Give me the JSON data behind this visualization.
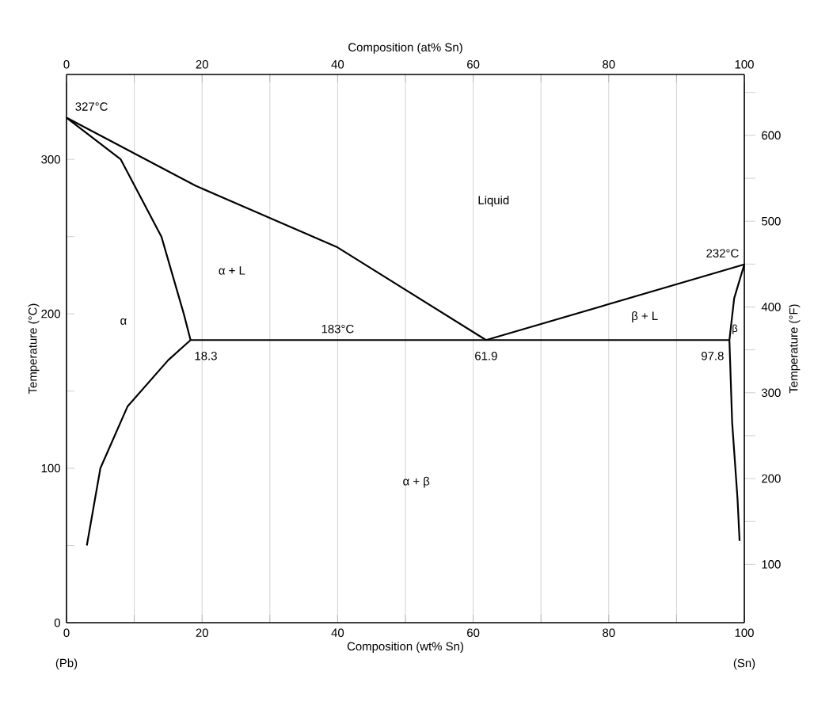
{
  "chart_data": {
    "type": "line",
    "xlabel": "Composition (wt% Sn)",
    "ylabel": "Temperature (°C)",
    "y2label": "Temperature (°F)",
    "x2label": "Composition (at% Sn)",
    "xlim": [
      0,
      100
    ],
    "ylim": [
      0,
      355
    ],
    "y2lim": [
      32,
      671
    ],
    "x2lim": [
      0,
      100
    ],
    "xticks": [
      0,
      {
        "value": 10,
        "label": null
      },
      20,
      {
        "value": 30,
        "label": null
      },
      40,
      {
        "value": 50,
        "label": null
      },
      60,
      {
        "value": 70,
        "label": null
      },
      80,
      {
        "value": 90,
        "label": null
      },
      100
    ],
    "yticks": [
      0,
      {
        "value": 50,
        "label": null
      },
      100,
      {
        "value": 150,
        "label": null
      },
      200,
      {
        "value": 250,
        "label": null
      },
      300
    ],
    "y2ticks": [
      100,
      {
        "value": 150,
        "label": null
      },
      200,
      {
        "value": 250,
        "label": null
      },
      300,
      {
        "value": 350,
        "label": null
      },
      400,
      {
        "value": 450,
        "label": null
      },
      500,
      {
        "value": 550,
        "label": null
      },
      600,
      {
        "value": 650,
        "label": null
      }
    ],
    "x2ticks": [
      0,
      {
        "value": 10,
        "label": null
      },
      20,
      {
        "value": 30,
        "label": null
      },
      40,
      {
        "value": 50,
        "label": null
      },
      60,
      {
        "value": 70,
        "label": null
      },
      80,
      {
        "value": 90,
        "label": null
      },
      100
    ],
    "grid": "x",
    "series": [
      {
        "color": "#000000",
        "x": [
          0,
          19,
          40,
          61.9
        ],
        "values": [
          327,
          283,
          243,
          183
        ]
      },
      {
        "color": "#000000",
        "x": [
          61.9,
          100
        ],
        "values": [
          183,
          232
        ]
      },
      {
        "color": "#000000",
        "x": [
          0,
          8,
          14,
          17.3,
          18.3
        ],
        "values": [
          327,
          300,
          250,
          200,
          183
        ]
      },
      {
        "color": "#000000",
        "x": [
          18.3,
          97.8
        ],
        "values": [
          183,
          183
        ]
      },
      {
        "color": "#000000",
        "x": [
          18.3,
          15,
          9,
          5,
          3
        ],
        "values": [
          183,
          170,
          140,
          100,
          50
        ]
      },
      {
        "color": "#000000",
        "x": [
          100,
          98.5,
          97.8,
          98.2,
          99,
          99.3
        ],
        "values": [
          232,
          210,
          183,
          130,
          80,
          53
        ]
      }
    ],
    "annotations": [
      {
        "text": "327°C",
        "x": 0,
        "y": 327
      },
      {
        "text": "232°C",
        "x": 100,
        "y": 232
      },
      {
        "text": "183°C",
        "x": 40,
        "y": 183
      },
      {
        "text": "18.3",
        "x": 18.3,
        "y": 183
      },
      {
        "text": "61.9",
        "x": 61.9,
        "y": 183
      },
      {
        "text": "97.8",
        "x": 97.8,
        "y": 183
      },
      "Liquid",
      "α + L",
      "α",
      "β + L",
      "β",
      "α + β",
      "(Pb)",
      "(Sn)"
    ]
  }
}
